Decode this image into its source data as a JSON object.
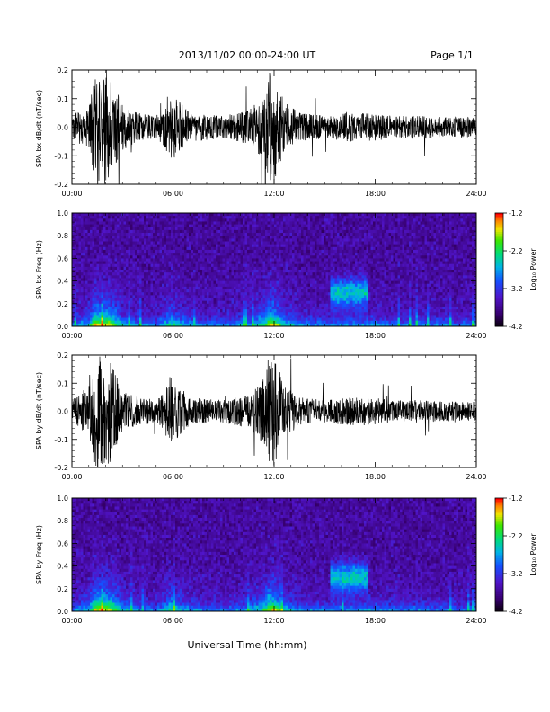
{
  "header": {
    "title": "2013/11/02  00:00-24:00 UT",
    "page": "Page 1/1"
  },
  "footer": {
    "xlabel": "Universal Time (hh:mm)"
  },
  "colorbar": {
    "label": "Log₁₀ Power",
    "ticks": [
      "-1.2",
      "-2.2",
      "-3.2",
      "-4.2"
    ],
    "range": [
      -4.2,
      -1.2
    ]
  },
  "chart_data": [
    {
      "type": "line",
      "ylabel": "SPA bx dB/dt (nT/sec)",
      "xlim": [
        0,
        24
      ],
      "ylim": [
        -0.2,
        0.2
      ],
      "xticks": [
        "00:00",
        "06:00",
        "12:00",
        "18:00",
        "24:00"
      ],
      "yticks": [
        "0.2",
        "0.1",
        "0.0",
        "-0.1",
        "-0.2"
      ],
      "envelope_hours": [
        0,
        1,
        1.4,
        1.8,
        2.2,
        3,
        4,
        5,
        5.5,
        5.8,
        6.2,
        7,
        9,
        10.5,
        11.4,
        11.7,
        12,
        12.6,
        13.5,
        15,
        16.5,
        17.5,
        19,
        20,
        21,
        22,
        23,
        24
      ],
      "envelope_amplitude": [
        0.04,
        0.08,
        0.2,
        0.2,
        0.2,
        0.08,
        0.05,
        0.04,
        0.08,
        0.12,
        0.1,
        0.05,
        0.04,
        0.06,
        0.12,
        0.2,
        0.2,
        0.09,
        0.05,
        0.04,
        0.05,
        0.05,
        0.04,
        0.04,
        0.04,
        0.035,
        0.035,
        0.035
      ]
    },
    {
      "type": "heatmap",
      "ylabel": "SPA bx Freq (Hz)",
      "xlim": [
        0,
        24
      ],
      "ylim": [
        0,
        1
      ],
      "xticks": [
        "00:00",
        "06:00",
        "12:00",
        "18:00",
        "24:00"
      ],
      "yticks": [
        "1.0",
        "0.8",
        "0.6",
        "0.4",
        "0.2",
        "0.0"
      ],
      "colorbar_range": [
        -4.2,
        -1.2
      ]
    },
    {
      "type": "line",
      "ylabel": "SPA by dB/dt (nT/sec)",
      "xlim": [
        0,
        24
      ],
      "ylim": [
        -0.2,
        0.2
      ],
      "xticks": [
        "00:00",
        "06:00",
        "12:00",
        "18:00",
        "24:00"
      ],
      "yticks": [
        "0.2",
        "0.1",
        "0.0",
        "-0.1",
        "-0.2"
      ],
      "envelope_hours": [
        0,
        1,
        1.4,
        1.8,
        2.2,
        3,
        4,
        5,
        5.5,
        5.8,
        6.2,
        7,
        9,
        10.5,
        11.4,
        11.7,
        12,
        12.6,
        13.5,
        15,
        16.5,
        17.5,
        19,
        20,
        21,
        22,
        23,
        24
      ],
      "envelope_amplitude": [
        0.04,
        0.09,
        0.2,
        0.2,
        0.2,
        0.07,
        0.05,
        0.04,
        0.07,
        0.13,
        0.1,
        0.05,
        0.04,
        0.06,
        0.12,
        0.2,
        0.2,
        0.1,
        0.05,
        0.04,
        0.05,
        0.05,
        0.04,
        0.04,
        0.04,
        0.035,
        0.035,
        0.035
      ]
    },
    {
      "type": "heatmap",
      "ylabel": "SPA by Freq (Hz)",
      "xlim": [
        0,
        24
      ],
      "ylim": [
        0,
        1
      ],
      "xticks": [
        "00:00",
        "06:00",
        "12:00",
        "18:00",
        "24:00"
      ],
      "yticks": [
        "1.0",
        "0.8",
        "0.6",
        "0.4",
        "0.2",
        "0.0"
      ],
      "colorbar_range": [
        -4.2,
        -1.2
      ]
    }
  ]
}
